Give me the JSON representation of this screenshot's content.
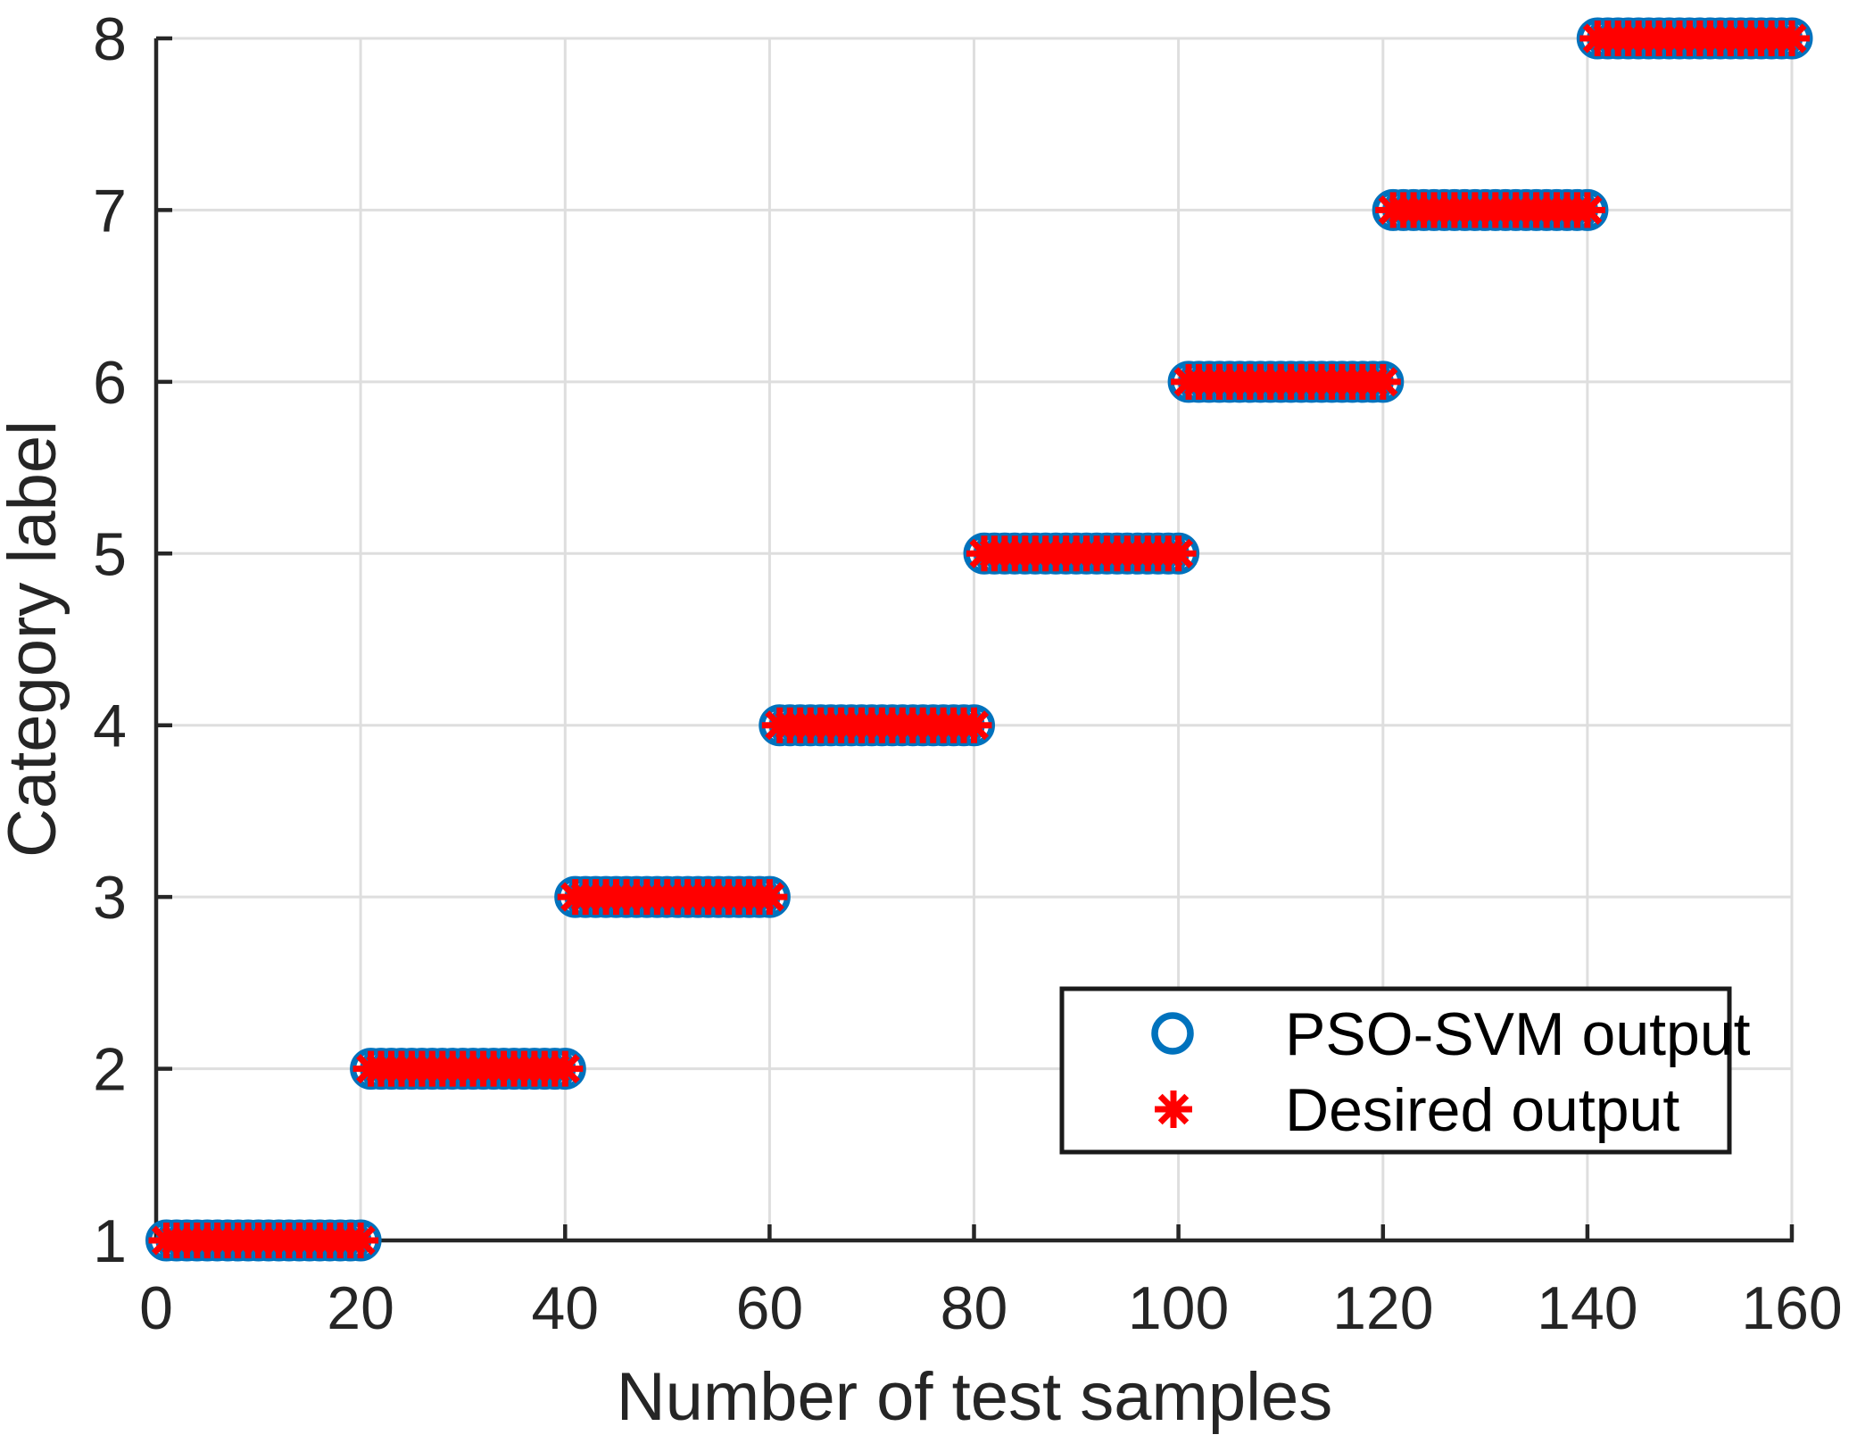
{
  "chart_data": {
    "type": "scatter",
    "title": "",
    "xlabel": "Number of test samples",
    "ylabel": "Category label",
    "xlim": [
      0,
      160
    ],
    "ylim": [
      1,
      8
    ],
    "xticks": [
      0,
      20,
      40,
      60,
      80,
      100,
      120,
      140,
      160
    ],
    "yticks": [
      1,
      2,
      3,
      4,
      5,
      6,
      7,
      8
    ],
    "grid": true,
    "n_samples": 160,
    "samples_per_category": 20,
    "n_categories": 8,
    "series": [
      {
        "name": "PSO-SVM output",
        "marker": "circle",
        "color": "#0072BD",
        "x": "1..160 step 1",
        "y_rule": "category = ceil(sample / 20)"
      },
      {
        "name": "Desired output",
        "marker": "asterisk",
        "color": "#FF0000",
        "x": "1..160 step 1",
        "y_rule": "category = ceil(sample / 20)"
      }
    ],
    "category_runs": [
      {
        "category": 1,
        "sample_start": 1,
        "sample_end": 20
      },
      {
        "category": 2,
        "sample_start": 21,
        "sample_end": 40
      },
      {
        "category": 3,
        "sample_start": 41,
        "sample_end": 60
      },
      {
        "category": 4,
        "sample_start": 61,
        "sample_end": 80
      },
      {
        "category": 5,
        "sample_start": 81,
        "sample_end": 100
      },
      {
        "category": 6,
        "sample_start": 101,
        "sample_end": 120
      },
      {
        "category": 7,
        "sample_start": 121,
        "sample_end": 140
      },
      {
        "category": 8,
        "sample_start": 141,
        "sample_end": 160
      }
    ],
    "legend_position": "lower-right-inside",
    "colors": {
      "background": "#FFFFFF",
      "grid": "#DEDEDE",
      "axis": "#262626",
      "tick_text": "#252525",
      "legend_border": "#1A1A1A",
      "legend_background": "#FFFFFF",
      "series_circle": "#0072BD",
      "series_asterisk": "#FF0000"
    }
  }
}
